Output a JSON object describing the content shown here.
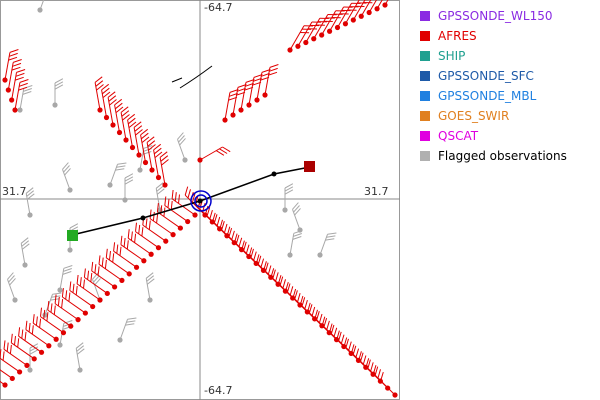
{
  "axis_labels": {
    "top": "-64.7",
    "bottom": "-64.7",
    "left": "31.7",
    "right": "31.7"
  },
  "legend": {
    "items": [
      {
        "label": "GPSSONDE_WL150",
        "color": "#8a2be2",
        "text_color": "#8a2be2"
      },
      {
        "label": "AFRES",
        "color": "#e00000",
        "text_color": "#e00000"
      },
      {
        "label": "SHIP",
        "color": "#20a090",
        "text_color": "#20a090"
      },
      {
        "label": "GPSSONDE_SFC",
        "color": "#1e5aa8",
        "text_color": "#1e5aa8"
      },
      {
        "label": "GPSSONDE_MBL",
        "color": "#2080e0",
        "text_color": "#2080e0"
      },
      {
        "label": "GOES_SWIR",
        "color": "#e08020",
        "text_color": "#e08020"
      },
      {
        "label": "QSCAT",
        "color": "#e000e0",
        "text_color": "#e000e0"
      },
      {
        "label": "Flagged observations",
        "color": "#b0b0b0",
        "text_color": "#000000"
      }
    ]
  },
  "colors": {
    "afres": "#e00000",
    "flagged": "#a8a8a8",
    "track": "#000000",
    "start_marker": "#22aa22",
    "end_marker": "#aa0000",
    "center_ring": "#0000cc",
    "gridline": "#888888"
  }
}
